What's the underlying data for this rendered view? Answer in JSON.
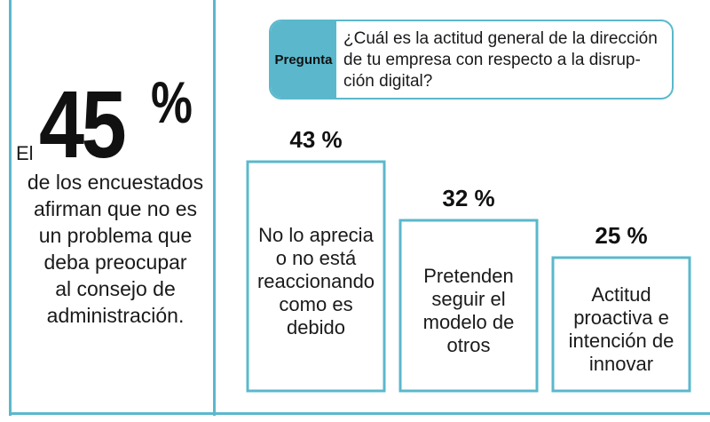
{
  "colors": {
    "accent": "#5bb8cc",
    "text": "#1a1a1a"
  },
  "stat": {
    "prefix": "El",
    "value": "45",
    "unit": "%",
    "description": "de los encuestados\nafirman que no es\nun problema que\ndeba preocupar\nal consejo de\nadministración."
  },
  "question": {
    "label": "Pregunta",
    "text": "¿Cuál es la actitud general de la dirección\nde tu empresa con respecto a la disrup-\nción digital?"
  },
  "chart_data": {
    "type": "bar",
    "title": "¿Cuál es la actitud general de la dirección de tu empresa con respecto a la disrupción digital?",
    "categories": [
      "No lo aprecia\no no está\nreaccionando\ncomo es\ndebido",
      "Pretenden\nseguir el\nmodelo de\notros",
      "Actitud\nproactiva e\nintención de\ninnovar"
    ],
    "values": [
      43,
      32,
      25
    ],
    "value_labels": [
      "43 %",
      "32 %",
      "25 %"
    ],
    "unit": "%",
    "ylim": [
      0,
      43
    ],
    "grid": false
  }
}
